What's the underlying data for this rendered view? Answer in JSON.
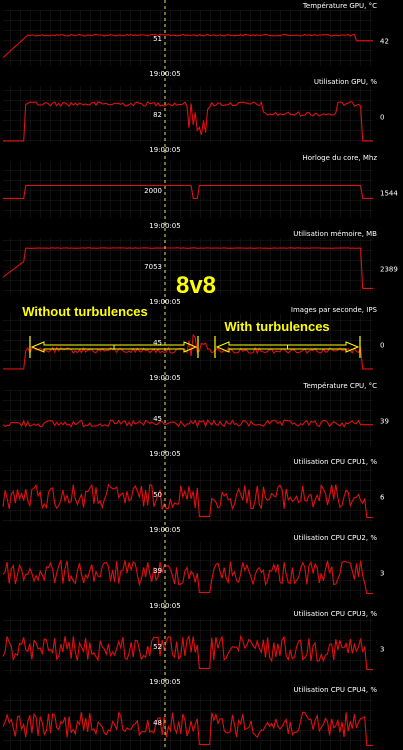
{
  "app": {
    "cursor_time": "19:00:05"
  },
  "colors": {
    "background": "#000000",
    "grid": "#1e1e1e",
    "series": "#e01010",
    "cursor": "#e8e060",
    "overlay": "#ffff00",
    "text": "#ffffff"
  },
  "overlay": {
    "big_label": "8v8",
    "left_label": "Without turbulences",
    "right_label": "With turbulences"
  },
  "panels": [
    {
      "label": "Température GPU, °C",
      "cursor_value": "51",
      "right_value": "42",
      "shape": "gpu_temp"
    },
    {
      "label": "Utilisation GPU, %",
      "cursor_value": "82",
      "right_value": "0",
      "shape": "gpu_util"
    },
    {
      "label": "Horloge du core, Mhz",
      "cursor_value": "2000",
      "right_value": "1544",
      "shape": "core_clock"
    },
    {
      "label": "Utilisation mémoire, MB",
      "cursor_value": "7053",
      "right_value": "2389",
      "shape": "mem_util"
    },
    {
      "label": "Images par seconde, IPS",
      "cursor_value": "45",
      "right_value": "0",
      "shape": "fps"
    },
    {
      "label": "Température CPU, °C",
      "cursor_value": "45",
      "right_value": "39",
      "shape": "cpu_temp"
    },
    {
      "label": "Utilisation CPU CPU1, %",
      "cursor_value": "50",
      "right_value": "6",
      "shape": "cpu_noise"
    },
    {
      "label": "Utilisation CPU CPU2, %",
      "cursor_value": "39",
      "right_value": "3",
      "shape": "cpu_noise"
    },
    {
      "label": "Utilisation CPU CPU3, %",
      "cursor_value": "52",
      "right_value": "3",
      "shape": "cpu_noise"
    },
    {
      "label": "Utilisation CPU CPU4, %",
      "cursor_value": "48",
      "right_value": "",
      "shape": "cpu_noise"
    }
  ]
}
